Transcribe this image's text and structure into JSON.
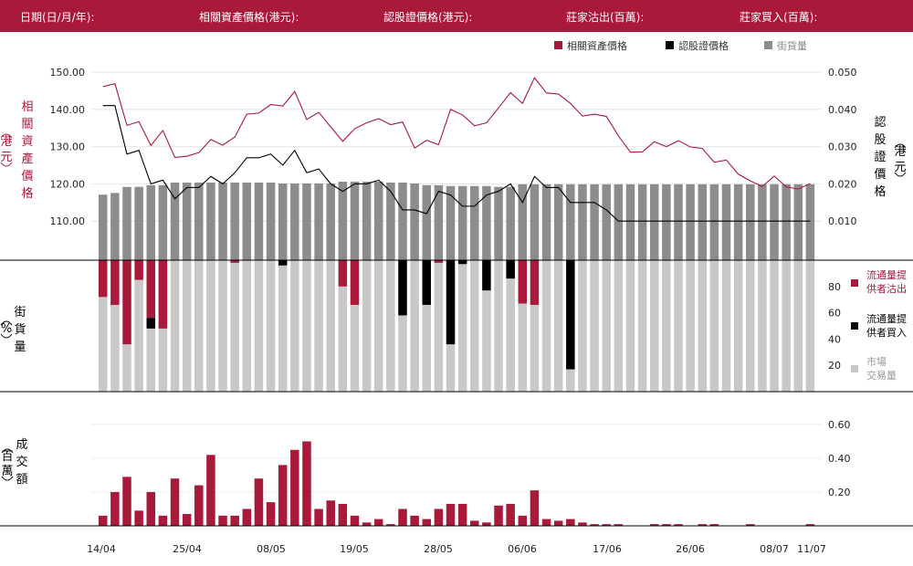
{
  "header": {
    "date_label": "日期(日/月/年):",
    "asset_price_label": "相關資產價格(港元):",
    "warrant_price_label": "認股證價格(港元):",
    "issuer_sold_label": "莊家沽出(百萬):",
    "issuer_bought_label": "莊家買入(百萬):"
  },
  "legend_top": {
    "asset": "相關資產價格",
    "warrant": "認股證價格",
    "outstanding": "街貨量"
  },
  "legend_mid": {
    "sold_line1": "流通量提",
    "sold_line2": "供者沽出",
    "bought_line1": "流通量提",
    "bought_line2": "供者買入",
    "market_line1": "市場",
    "market_line2": "交易量"
  },
  "axis_titles": {
    "left_top": "相關資產價格",
    "left_top_unit": "(港元)",
    "right_top": "認股證價格",
    "right_top_unit": "(港元)",
    "left_mid": "街貨量",
    "left_mid_unit": "(%)",
    "left_bottom": "成交額",
    "left_bottom_unit": "(百萬)"
  },
  "colors": {
    "brand": "#a8193a",
    "asset_line": "#a8193a",
    "warrant_line": "#000000",
    "outstanding_bar": "#8c8c8c",
    "market_bar": "#c8c8c8",
    "sold_bar": "#a8193a",
    "bought_bar": "#000000",
    "turnover_bar": "#a8193a"
  },
  "chart_data": [
    {
      "type": "line",
      "role": "price",
      "x_ticks": [
        "14/04",
        "25/04",
        "08/05",
        "19/05",
        "28/05",
        "06/06",
        "17/06",
        "26/06",
        "08/07",
        "11/07"
      ],
      "left_axis": {
        "ticks": [
          "150.00",
          "140.00",
          "130.00",
          "120.00",
          "110.00"
        ],
        "ylim": [
          100,
          150
        ]
      },
      "right_axis": {
        "ticks": [
          "0.050",
          "0.040",
          "0.030",
          "0.020",
          "0.010"
        ],
        "ylim": [
          0,
          0.05
        ]
      },
      "series": [
        {
          "name": "相關資產價格",
          "axis": "left",
          "values": [
            146.1,
            146.9,
            135.7,
            136.7,
            130.3,
            134.3,
            127.1,
            127.4,
            128.4,
            131.9,
            130.4,
            132.6,
            138.7,
            139.0,
            141.3,
            140.9,
            144.8,
            137.3,
            139.2,
            135.3,
            131.4,
            134.8,
            136.4,
            137.5,
            135.9,
            136.6,
            129.6,
            131.7,
            130.5,
            140.0,
            138.5,
            135.6,
            136.4,
            140.4,
            144.5,
            141.6,
            148.5,
            144.4,
            144.1,
            141.6,
            138.2,
            138.7,
            138.1,
            132.9,
            128.5,
            128.6,
            131.3,
            130.0,
            131.6,
            129.9,
            129.5,
            125.8,
            126.4,
            122.6,
            120.8,
            119.3,
            122.1,
            119.2,
            118.6,
            120.1
          ]
        },
        {
          "name": "認股證價格",
          "axis": "right",
          "values": [
            0.041,
            0.041,
            0.028,
            0.029,
            0.02,
            0.021,
            0.016,
            0.019,
            0.019,
            0.022,
            0.02,
            0.023,
            0.027,
            0.027,
            0.028,
            0.025,
            0.029,
            0.023,
            0.024,
            0.02,
            0.018,
            0.02,
            0.02,
            0.021,
            0.018,
            0.013,
            0.013,
            0.012,
            0.018,
            0.017,
            0.014,
            0.014,
            0.017,
            0.018,
            0.02,
            0.015,
            0.022,
            0.019,
            0.019,
            0.015,
            0.015,
            0.015,
            0.013,
            0.01,
            0.01,
            0.01,
            0.01,
            0.01,
            0.01,
            0.01,
            0.01,
            0.01,
            0.01,
            0.01,
            0.01,
            0.01,
            0.01,
            0.01,
            0.01,
            0.01
          ]
        }
      ]
    },
    {
      "type": "bar",
      "role": "outstanding",
      "series_name": "街貨量",
      "values": [
        76,
        78,
        85,
        85,
        87,
        87,
        90,
        90,
        90,
        90,
        90,
        90,
        90,
        90,
        90,
        89,
        89,
        89,
        89,
        89,
        91,
        91,
        91,
        91,
        90,
        90,
        89,
        87,
        87,
        86,
        86,
        86,
        86,
        85,
        85,
        88,
        88,
        88,
        88,
        88,
        88,
        88,
        88,
        88,
        88,
        88,
        88,
        88,
        88,
        88,
        88,
        88,
        88,
        88,
        88,
        88,
        88,
        88,
        88,
        88
      ]
    },
    {
      "type": "bar",
      "role": "volume",
      "y_ticks": [
        "80",
        "60",
        "40",
        "20"
      ],
      "ylim": [
        0,
        100
      ],
      "market": [
        72,
        66,
        36,
        85,
        48,
        48,
        100,
        100,
        100,
        100,
        100,
        98,
        100,
        100,
        100,
        96,
        100,
        100,
        100,
        100,
        80,
        66,
        100,
        100,
        100,
        58,
        100,
        66,
        98,
        36,
        97,
        100,
        77,
        100,
        86,
        67,
        66,
        100,
        100,
        17,
        100,
        100,
        100,
        100,
        100,
        100,
        100,
        100,
        100,
        100,
        100,
        100,
        100,
        100,
        100,
        100,
        100,
        100,
        100,
        100
      ],
      "sold": [
        28,
        34,
        64,
        15,
        44,
        52,
        0,
        0,
        0,
        0,
        0,
        2,
        0,
        0,
        0,
        0,
        0,
        0,
        0,
        0,
        20,
        34,
        0,
        0,
        0,
        0,
        0,
        0,
        2,
        0,
        0,
        0,
        0,
        0,
        0,
        33,
        34,
        0,
        0,
        0,
        0,
        0,
        0,
        0,
        0,
        0,
        0,
        0,
        0,
        0,
        0,
        0,
        0,
        0,
        0,
        0,
        0,
        0,
        0,
        0
      ],
      "bought": [
        0,
        0,
        0,
        0,
        8,
        0,
        0,
        0,
        0,
        0,
        0,
        0,
        0,
        0,
        0,
        4,
        0,
        0,
        0,
        0,
        0,
        0,
        0,
        0,
        0,
        42,
        0,
        34,
        0,
        64,
        3,
        0,
        23,
        0,
        14,
        0,
        0,
        0,
        0,
        83,
        0,
        0,
        0,
        0,
        0,
        0,
        0,
        0,
        0,
        0,
        0,
        0,
        0,
        0,
        0,
        0,
        0,
        0,
        0,
        0
      ]
    },
    {
      "type": "bar",
      "role": "turnover",
      "y_ticks": [
        "0.60",
        "0.40",
        "0.20"
      ],
      "ylim": [
        0,
        0.6
      ],
      "values": [
        0.06,
        0.2,
        0.29,
        0.09,
        0.2,
        0.06,
        0.28,
        0.07,
        0.24,
        0.42,
        0.06,
        0.06,
        0.1,
        0.28,
        0.14,
        0.36,
        0.45,
        0.5,
        0.1,
        0.15,
        0.13,
        0.06,
        0.02,
        0.04,
        0.01,
        0.1,
        0.06,
        0.04,
        0.1,
        0.13,
        0.13,
        0.03,
        0.02,
        0.12,
        0.13,
        0.06,
        0.21,
        0.04,
        0.03,
        0.04,
        0.02,
        0.01,
        0.01,
        0.01,
        0,
        0,
        0.01,
        0.01,
        0.01,
        0,
        0.01,
        0.01,
        0,
        0,
        0.01,
        0,
        0,
        0,
        0,
        0.01
      ]
    }
  ]
}
